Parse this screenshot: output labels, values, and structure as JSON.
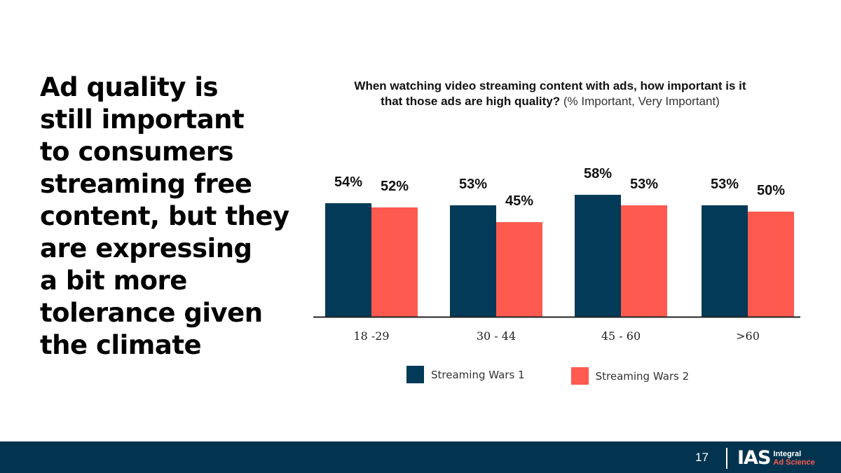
{
  "headline": {
    "lines": [
      "Ad quality is",
      "still important",
      "to consumers",
      "streaming free",
      "content, but they",
      "are expressing",
      "a bit more",
      "tolerance given",
      "the climate"
    ]
  },
  "chart_data": {
    "type": "bar",
    "title": "When watching video streaming content with ads, how important is it that those ads are high quality?",
    "title_line1": "When watching video streaming content with ads, how important is it",
    "title_line2": "that those ads are high quality?",
    "subtitle": "(% Important, Very Important)",
    "categories": [
      "18 -29",
      "30 - 44",
      "45 - 60",
      ">60"
    ],
    "series": [
      {
        "name": "Streaming Wars 1",
        "values": [
          54,
          53,
          58,
          53
        ],
        "labels": [
          "54%",
          "53%",
          "58%",
          "53%"
        ],
        "color": "#023a57"
      },
      {
        "name": "Streaming Wars 2",
        "values": [
          52,
          45,
          53,
          50
        ],
        "labels": [
          "52%",
          "45%",
          "53%",
          "50%"
        ],
        "color": "#fe5a4f"
      }
    ],
    "ylim": [
      0,
      100
    ],
    "grid": false,
    "legend": "bottom",
    "xlabel": "",
    "ylabel": ""
  },
  "footer": {
    "page_number": "17",
    "logo_mark": "IAS",
    "logo_line1": "Integral",
    "logo_line2": "Ad Science",
    "background": "#03344f"
  }
}
